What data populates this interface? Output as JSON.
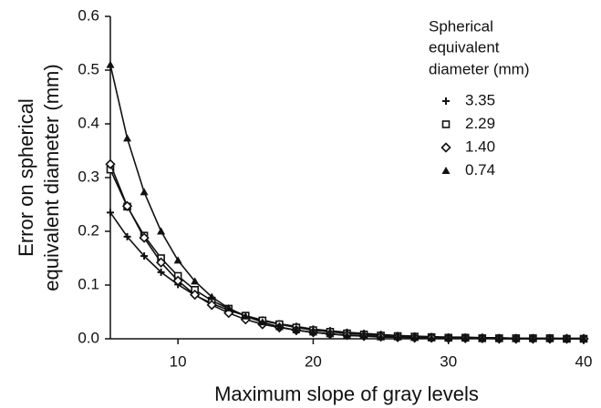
{
  "chart_data": {
    "type": "line",
    "xlabel": "Maximum slope of gray levels",
    "ylabel": [
      "Error on spherical",
      "equivalent diameter (mm)"
    ],
    "legend_title": [
      "Spherical",
      "equivalent",
      "diameter (mm)"
    ],
    "x": [
      5,
      6.25,
      7.5,
      8.75,
      10,
      11.25,
      12.5,
      13.75,
      15,
      16.25,
      17.5,
      18.75,
      20,
      21.25,
      22.5,
      23.75,
      25,
      26.25,
      27.5,
      28.75,
      30,
      31.25,
      32.5,
      33.75,
      35,
      36.25,
      37.5,
      38.75,
      40
    ],
    "xlim": [
      5,
      40
    ],
    "xticks": [
      10,
      20,
      30,
      40
    ],
    "ylim": [
      0,
      0.6
    ],
    "yticks": [
      {
        "value": 0,
        "label": "0.0"
      },
      0.1,
      0.2,
      0.3,
      0.4,
      0.5,
      0.6
    ],
    "series": [
      {
        "name": "3.35",
        "marker": "plus",
        "color": "#111111",
        "values": [
          0.235,
          0.19,
          0.154,
          0.124,
          0.101,
          0.081,
          0.066,
          0.053,
          0.043,
          0.035,
          0.028,
          0.023,
          0.018,
          0.015,
          0.012,
          0.01,
          0.008,
          0.006,
          0.005,
          0.004,
          0.003,
          0.003,
          0.002,
          0.002,
          0.001,
          0.001,
          0.001,
          0.001,
          0.001
        ]
      },
      {
        "name": "2.29",
        "marker": "square",
        "color": "#111111",
        "values": [
          0.315,
          0.246,
          0.192,
          0.15,
          0.117,
          0.091,
          0.071,
          0.056,
          0.043,
          0.034,
          0.027,
          0.021,
          0.016,
          0.013,
          0.01,
          0.008,
          0.006,
          0.005,
          0.004,
          0.003,
          0.002,
          0.002,
          0.001,
          0.001,
          0.001,
          0.001,
          0.001,
          0,
          0
        ]
      },
      {
        "name": "1.40",
        "marker": "diamond",
        "color": "#111111",
        "values": [
          0.325,
          0.247,
          0.188,
          0.142,
          0.108,
          0.082,
          0.063,
          0.048,
          0.036,
          0.027,
          0.021,
          0.016,
          0.012,
          0.009,
          0.007,
          0.005,
          0.004,
          0.003,
          0.002,
          0.002,
          0.001,
          0.001,
          0.001,
          0,
          0,
          0,
          0,
          0,
          0
        ]
      },
      {
        "name": "0.74",
        "marker": "triangle",
        "color": "#111111",
        "values": [
          0.51,
          0.373,
          0.273,
          0.2,
          0.146,
          0.107,
          0.078,
          0.057,
          0.042,
          0.031,
          0.022,
          0.016,
          0.012,
          0.009,
          0.006,
          0.005,
          0.003,
          0.003,
          0.002,
          0.001,
          0.001,
          0.001,
          0.001,
          0,
          0,
          0,
          0,
          0,
          0
        ]
      }
    ]
  }
}
